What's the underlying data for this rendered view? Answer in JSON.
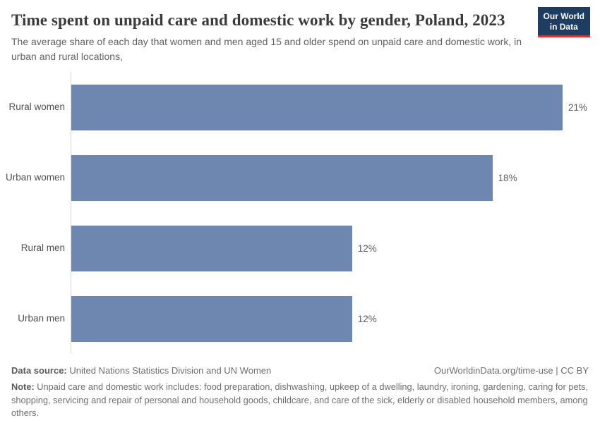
{
  "header": {
    "title": "Time spent on unpaid care and domestic work by gender, Poland, 2023",
    "subtitle": "The average share of each day that women and men aged 15 and older spend on unpaid care and domestic work, in urban and rural locations,",
    "logo": {
      "line1": "Our World",
      "line2": "in Data"
    }
  },
  "chart_data": {
    "type": "bar",
    "orientation": "horizontal",
    "title": "Time spent on unpaid care and domestic work by gender, Poland, 2023",
    "categories": [
      "Rural women",
      "Urban women",
      "Rural men",
      "Urban men"
    ],
    "values": [
      21,
      18,
      12,
      12
    ],
    "value_labels": [
      "21%",
      "18%",
      "12%",
      "12%"
    ],
    "unit": "%",
    "xlabel": "",
    "ylabel": "",
    "xlim": [
      0,
      22.6
    ],
    "grid": false,
    "legend": "none"
  },
  "footer": {
    "datasource_label": "Data source:",
    "datasource_text": " United Nations Statistics Division and UN Women",
    "link_text": "OurWorldinData.org/time-use | CC BY",
    "note_label": "Note:",
    "note_text": " Unpaid care and domestic work includes: food preparation, dishwashing, upkeep of a dwelling, laundry, ironing, gardening, caring for pets, shopping, servicing and repair of personal and household goods, childcare, and care of the sick, elderly or disabled household members, among others."
  },
  "colors": {
    "bar": "#6e87b0",
    "logo_bg": "#1d3d63",
    "logo_red": "#d0342c",
    "axis_line": "#d9d9d9",
    "title_text": "#3a3a3a",
    "subtitle_text": "#616161"
  }
}
